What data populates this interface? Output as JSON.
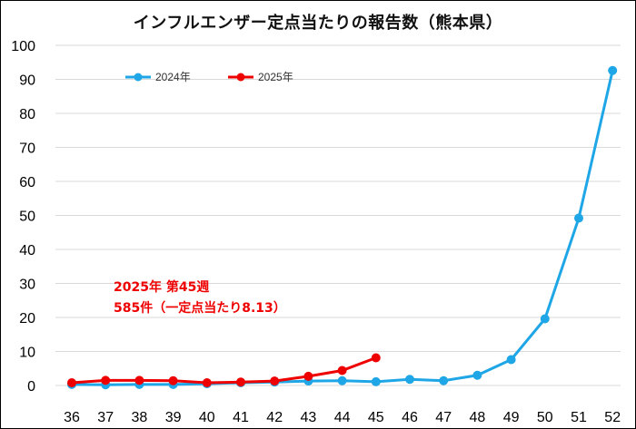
{
  "chart_data": {
    "type": "line",
    "title": "インフルエンザー定点当たりの報告数（熊本県）",
    "xlabel": "",
    "ylabel": "",
    "categories": [
      "36",
      "37",
      "38",
      "39",
      "40",
      "41",
      "42",
      "43",
      "44",
      "45",
      "46",
      "47",
      "48",
      "49",
      "50",
      "51",
      "52"
    ],
    "yticks": [
      "0",
      "10",
      "20",
      "30",
      "40",
      "50",
      "60",
      "70",
      "80",
      "90",
      "100"
    ],
    "ylim": [
      0,
      100
    ],
    "grid": true,
    "legend_position": "top-left",
    "series": [
      {
        "name": "2024年",
        "color": "#1ea6e6",
        "values": [
          0.3,
          0.2,
          0.3,
          0.3,
          0.5,
          0.8,
          1.0,
          1.3,
          1.4,
          1.1,
          1.8,
          1.4,
          3.0,
          7.6,
          19.6,
          49.2,
          92.6
        ]
      },
      {
        "name": "2025年",
        "color": "#ee0000",
        "values": [
          0.8,
          1.5,
          1.5,
          1.4,
          0.8,
          1.0,
          1.3,
          2.7,
          4.4,
          8.13,
          null,
          null,
          null,
          null,
          null,
          null,
          null
        ]
      }
    ],
    "annotations": [
      "2025年 第45週",
      "585件（一定点当たり8.13）"
    ]
  }
}
